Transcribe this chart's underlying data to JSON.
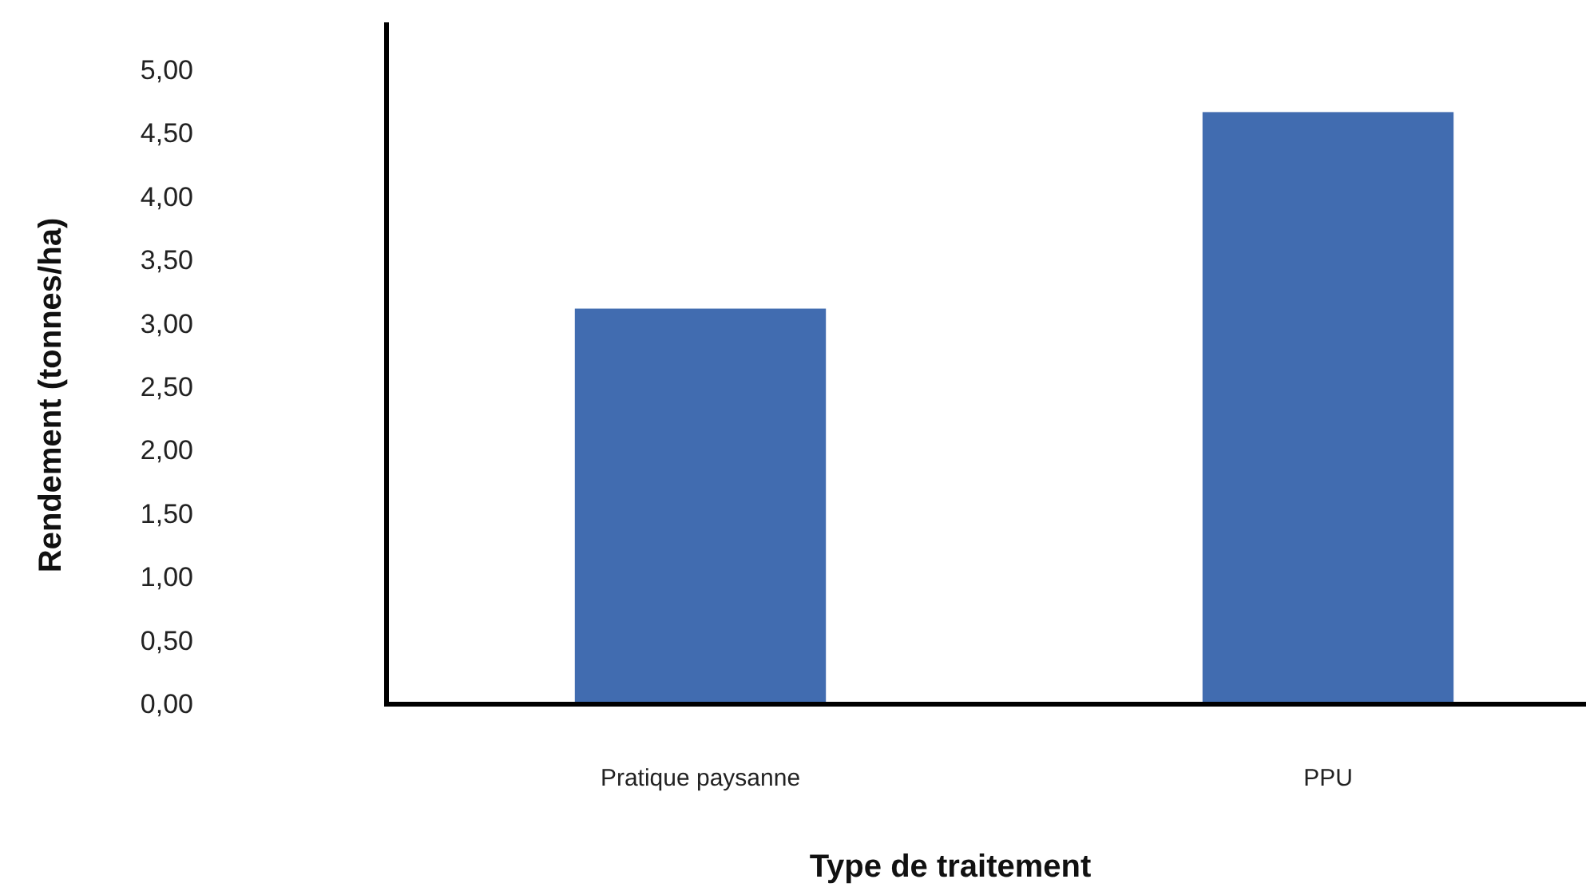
{
  "chart_data": {
    "type": "bar",
    "xlabel": "Type de traitement",
    "ylabel": "Rendement (tonnes/ha)",
    "categories": [
      "Pratique paysanne",
      "PPU"
    ],
    "values": [
      3.12,
      4.67
    ],
    "color": "#416cb0",
    "ylim": [
      0,
      5
    ],
    "yticks": [
      {
        "value": 0,
        "label": "0,00"
      },
      {
        "value": 0.5,
        "label": "0,50"
      },
      {
        "value": 1,
        "label": "1,00"
      },
      {
        "value": 1.5,
        "label": "1,50"
      },
      {
        "value": 2,
        "label": "2,00"
      },
      {
        "value": 2.5,
        "label": "2,50"
      },
      {
        "value": 3,
        "label": "3,00"
      },
      {
        "value": 3.5,
        "label": "3,50"
      },
      {
        "value": 4,
        "label": "4,00"
      },
      {
        "value": 4.5,
        "label": "4,50"
      },
      {
        "value": 5,
        "label": "5,00"
      }
    ],
    "grid": false
  }
}
